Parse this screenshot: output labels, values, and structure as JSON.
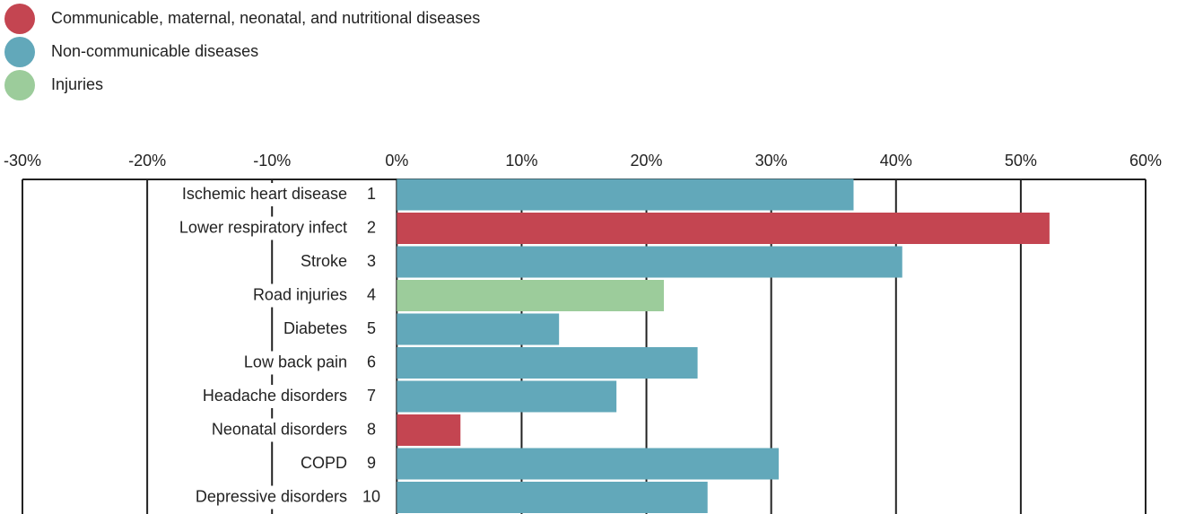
{
  "chart_data": {
    "type": "bar",
    "legend": [
      {
        "name": "Communicable, maternal, neonatal, and nutritional diseases",
        "color": "#c44551"
      },
      {
        "name": "Non-communicable diseases",
        "color": "#62a8ba"
      },
      {
        "name": "Injuries",
        "color": "#9ccc9b"
      }
    ],
    "categories": [
      "Ischemic heart disease",
      "Lower respiratory infect",
      "Stroke",
      "Road injuries",
      "Diabetes",
      "Low back pain",
      "Headache disorders",
      "Neonatal disorders",
      "COPD",
      "Depressive disorders"
    ],
    "ranks": [
      1,
      2,
      3,
      4,
      5,
      6,
      7,
      8,
      9,
      10
    ],
    "values": [
      36.6,
      52.3,
      40.5,
      21.4,
      13.0,
      24.1,
      17.6,
      5.1,
      30.6,
      24.9
    ],
    "colors": [
      "#62a8ba",
      "#c44551",
      "#62a8ba",
      "#9ccc9b",
      "#62a8ba",
      "#62a8ba",
      "#62a8ba",
      "#c44551",
      "#62a8ba",
      "#62a8ba"
    ],
    "xlim": [
      -30,
      60
    ],
    "xticks": [
      {
        "value": -30,
        "label": "-30%"
      },
      {
        "value": -20,
        "label": "-20%"
      },
      {
        "value": -10,
        "label": "-10%"
      },
      {
        "value": 0,
        "label": "0%"
      },
      {
        "value": 10,
        "label": "10%"
      },
      {
        "value": 20,
        "label": "20%"
      },
      {
        "value": 30,
        "label": "30%"
      },
      {
        "value": 40,
        "label": "40%"
      },
      {
        "value": 50,
        "label": "50%"
      },
      {
        "value": 60,
        "label": "60%"
      }
    ],
    "grid": true
  }
}
